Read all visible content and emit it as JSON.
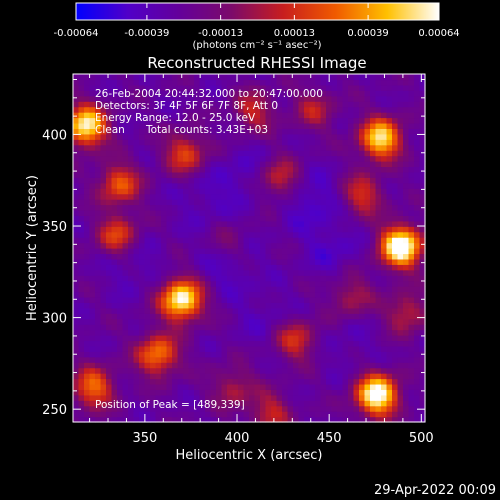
{
  "chart_data": {
    "type": "heatmap",
    "title": "Reconstructed RHESSI Image",
    "xlabel": "Heliocentric X (arcsec)",
    "ylabel": "Heliocentric Y (arcsec)",
    "xlim": [
      311,
      502
    ],
    "ylim": [
      243,
      433
    ],
    "x_ticks": [
      350,
      400,
      450,
      500
    ],
    "x_tick_labels": [
      "350",
      "400",
      "450",
      "500"
    ],
    "y_ticks": [
      250,
      300,
      350,
      400
    ],
    "y_tick_labels": [
      "250",
      "300",
      "350",
      "400"
    ],
    "colorbar": {
      "range": [
        -0.00064,
        0.00064
      ],
      "ticks": [
        -0.00064,
        -0.00039,
        -0.00013,
        0.00013,
        0.00039,
        0.00064
      ],
      "tick_labels": [
        "-0.00064",
        "-0.00039",
        "-0.00013",
        "0.00013",
        "0.00039",
        "0.00064"
      ],
      "unit_label": "(photons cm⁻² s⁻¹ asec⁻²)",
      "colormap": [
        "#0000ff",
        "#5000c8",
        "#64009a",
        "#7c0a6a",
        "#c81e1e",
        "#f05a00",
        "#ffc000",
        "#ffffff"
      ]
    },
    "annotations": {
      "time_range": "26-Feb-2004 20:44:32.000 to 20:47:00.000",
      "detectors": "Detectors: 3F 4F 5F 6F 7F 8F, Att 0",
      "energy": "Energy Range: 12.0 - 25.0 keV",
      "method": "Clean",
      "counts": "Total counts: 3.43E+03",
      "peak": "Position of Peak = [489,339]"
    },
    "sources": [
      {
        "x": 489,
        "y": 339,
        "intensity": 1.0
      },
      {
        "x": 476,
        "y": 258,
        "intensity": 0.95
      },
      {
        "x": 370,
        "y": 310,
        "intensity": 0.9
      },
      {
        "x": 318,
        "y": 405,
        "intensity": 0.85
      },
      {
        "x": 478,
        "y": 398,
        "intensity": 0.8
      },
      {
        "x": 357,
        "y": 280,
        "intensity": 0.6
      },
      {
        "x": 322,
        "y": 262,
        "intensity": 0.55
      },
      {
        "x": 336,
        "y": 373,
        "intensity": 0.5
      },
      {
        "x": 372,
        "y": 390,
        "intensity": 0.45
      },
      {
        "x": 335,
        "y": 345,
        "intensity": 0.45
      },
      {
        "x": 423,
        "y": 376,
        "intensity": 0.4
      },
      {
        "x": 468,
        "y": 367,
        "intensity": 0.4
      },
      {
        "x": 432,
        "y": 288,
        "intensity": 0.4
      },
      {
        "x": 418,
        "y": 248,
        "intensity": 0.35
      },
      {
        "x": 462,
        "y": 312,
        "intensity": 0.3
      },
      {
        "x": 442,
        "y": 414,
        "intensity": 0.3
      },
      {
        "x": 398,
        "y": 262,
        "intensity": 0.3
      },
      {
        "x": 409,
        "y": 413,
        "intensity": 0.35
      },
      {
        "x": 492,
        "y": 303,
        "intensity": 0.35
      },
      {
        "x": 395,
        "y": 340,
        "intensity": 0.2
      }
    ],
    "minima": [
      {
        "x": 440,
        "y": 365,
        "depth": 0.7
      },
      {
        "x": 395,
        "y": 330,
        "depth": 0.6
      },
      {
        "x": 452,
        "y": 338,
        "depth": 0.5
      },
      {
        "x": 405,
        "y": 378,
        "depth": 0.5
      },
      {
        "x": 343,
        "y": 330,
        "depth": 0.45
      },
      {
        "x": 382,
        "y": 365,
        "depth": 0.4
      },
      {
        "x": 460,
        "y": 285,
        "depth": 0.3
      },
      {
        "x": 415,
        "y": 300,
        "depth": 0.35
      }
    ]
  },
  "footer": {
    "timestamp": "29-Apr-2022 00:09"
  }
}
